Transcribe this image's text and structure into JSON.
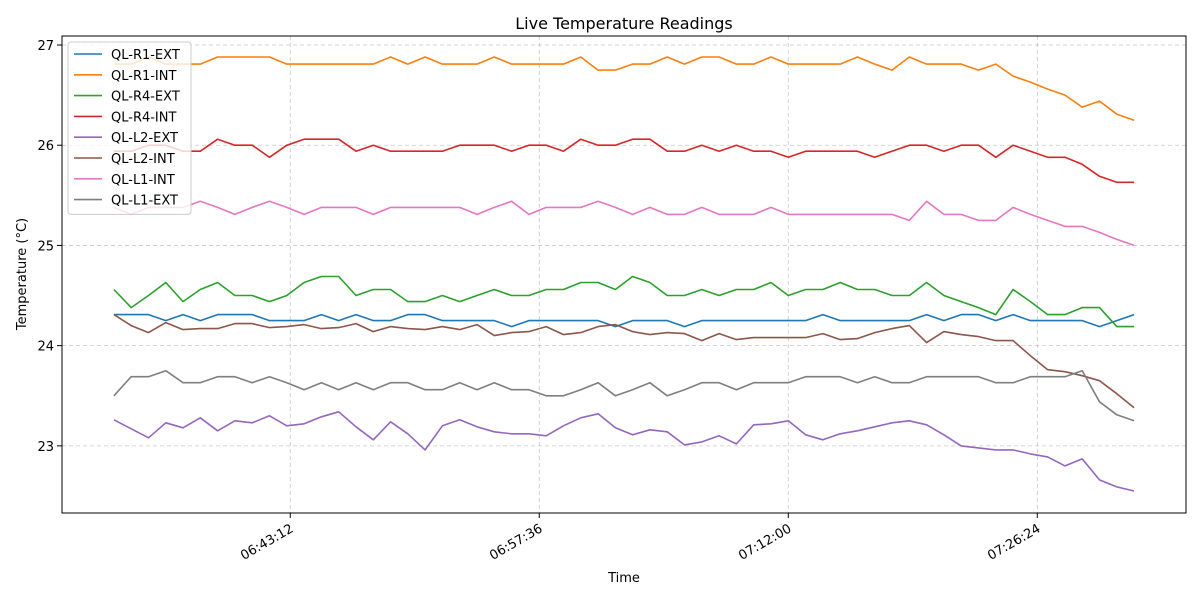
{
  "chart_data": {
    "type": "line",
    "title": "Live Temperature Readings",
    "xlabel": "Time",
    "ylabel": "Temperature (°C)",
    "x_unit": "minutes",
    "x": [
      0,
      2,
      4,
      6,
      8,
      10,
      12,
      14,
      16,
      18,
      20,
      22,
      24,
      26,
      28,
      30,
      32,
      34,
      36,
      38,
      40,
      42,
      44,
      46,
      48,
      50,
      52,
      54,
      56,
      58,
      60,
      62,
      64,
      66,
      68,
      70,
      72,
      74,
      76,
      78,
      80,
      82,
      84,
      86,
      88,
      90,
      92,
      94,
      96,
      98,
      100,
      102,
      104,
      106,
      108,
      110,
      112,
      114,
      116,
      118
    ],
    "xlim": [
      -6,
      124
    ],
    "ylim": [
      22.33,
      27.09
    ],
    "xticks": [
      {
        "value": 20.4,
        "label": "06:43:12"
      },
      {
        "value": 49.2,
        "label": "06:57:36"
      },
      {
        "value": 78.0,
        "label": "07:12:00"
      },
      {
        "value": 106.8,
        "label": "07:26:24"
      }
    ],
    "yticks": [
      23,
      24,
      25,
      26,
      27
    ],
    "grid": true,
    "legend_position": "upper left",
    "series": [
      {
        "name": "QL-R1-EXT",
        "color": "#1f77b4",
        "values": [
          24.31,
          24.31,
          24.31,
          24.25,
          24.31,
          24.25,
          24.31,
          24.31,
          24.31,
          24.25,
          24.25,
          24.25,
          24.31,
          24.25,
          24.31,
          24.25,
          24.25,
          24.31,
          24.31,
          24.25,
          24.25,
          24.25,
          24.25,
          24.19,
          24.25,
          24.25,
          24.25,
          24.25,
          24.25,
          24.19,
          24.25,
          24.25,
          24.25,
          24.19,
          24.25,
          24.25,
          24.25,
          24.25,
          24.25,
          24.25,
          24.25,
          24.31,
          24.25,
          24.25,
          24.25,
          24.25,
          24.25,
          24.31,
          24.25,
          24.31,
          24.31,
          24.25,
          24.31,
          24.25,
          24.25,
          24.25,
          24.25,
          24.19,
          24.25,
          24.31
        ]
      },
      {
        "name": "QL-R1-INT",
        "color": "#ff7f0e",
        "values": [
          26.81,
          26.81,
          26.88,
          26.81,
          26.81,
          26.81,
          26.88,
          26.88,
          26.88,
          26.88,
          26.81,
          26.81,
          26.81,
          26.81,
          26.81,
          26.81,
          26.88,
          26.81,
          26.88,
          26.81,
          26.81,
          26.81,
          26.88,
          26.81,
          26.81,
          26.81,
          26.81,
          26.88,
          26.75,
          26.75,
          26.81,
          26.81,
          26.88,
          26.81,
          26.88,
          26.88,
          26.81,
          26.81,
          26.88,
          26.81,
          26.81,
          26.81,
          26.81,
          26.88,
          26.81,
          26.75,
          26.88,
          26.81,
          26.81,
          26.81,
          26.75,
          26.81,
          26.69,
          26.63,
          26.56,
          26.5,
          26.38,
          26.44,
          26.31,
          26.25
        ]
      },
      {
        "name": "QL-R4-EXT",
        "color": "#2ca02c",
        "values": [
          24.56,
          24.38,
          24.5,
          24.63,
          24.44,
          24.56,
          24.63,
          24.5,
          24.5,
          24.44,
          24.5,
          24.63,
          24.69,
          24.69,
          24.5,
          24.56,
          24.56,
          24.44,
          24.44,
          24.5,
          24.44,
          24.5,
          24.56,
          24.5,
          24.5,
          24.56,
          24.56,
          24.63,
          24.63,
          24.56,
          24.69,
          24.63,
          24.5,
          24.5,
          24.56,
          24.5,
          24.56,
          24.56,
          24.63,
          24.5,
          24.56,
          24.56,
          24.63,
          24.56,
          24.56,
          24.5,
          24.5,
          24.63,
          24.5,
          24.44,
          24.38,
          24.31,
          24.56,
          24.44,
          24.31,
          24.31,
          24.38,
          24.38,
          24.19,
          24.19
        ]
      },
      {
        "name": "QL-R4-INT",
        "color": "#d62728",
        "values": [
          25.94,
          25.94,
          26.0,
          26.0,
          25.94,
          25.94,
          26.06,
          26.0,
          26.0,
          25.88,
          26.0,
          26.06,
          26.06,
          26.06,
          25.94,
          26.0,
          25.94,
          25.94,
          25.94,
          25.94,
          26.0,
          26.0,
          26.0,
          25.94,
          26.0,
          26.0,
          25.94,
          26.06,
          26.0,
          26.0,
          26.06,
          26.06,
          25.94,
          25.94,
          26.0,
          25.94,
          26.0,
          25.94,
          25.94,
          25.88,
          25.94,
          25.94,
          25.94,
          25.94,
          25.88,
          25.94,
          26.0,
          26.0,
          25.94,
          26.0,
          26.0,
          25.88,
          26.0,
          25.94,
          25.88,
          25.88,
          25.81,
          25.69,
          25.63,
          25.63
        ]
      },
      {
        "name": "QL-L2-EXT",
        "color": "#9467bd",
        "values": [
          23.26,
          23.17,
          23.08,
          23.23,
          23.18,
          23.28,
          23.15,
          23.25,
          23.23,
          23.3,
          23.2,
          23.22,
          23.29,
          23.34,
          23.19,
          23.06,
          23.24,
          23.12,
          22.96,
          23.2,
          23.26,
          23.19,
          23.14,
          23.12,
          23.12,
          23.1,
          23.2,
          23.28,
          23.32,
          23.18,
          23.11,
          23.16,
          23.14,
          23.01,
          23.04,
          23.1,
          23.02,
          23.21,
          23.22,
          23.25,
          23.11,
          23.06,
          23.12,
          23.15,
          23.19,
          23.23,
          23.25,
          23.21,
          23.11,
          23.0,
          22.98,
          22.96,
          22.96,
          22.92,
          22.89,
          22.8,
          22.87,
          22.66,
          22.59,
          22.55
        ]
      },
      {
        "name": "QL-L2-INT",
        "color": "#8c564b",
        "values": [
          24.31,
          24.2,
          24.13,
          24.23,
          24.16,
          24.17,
          24.17,
          24.22,
          24.22,
          24.18,
          24.19,
          24.21,
          24.17,
          24.18,
          24.22,
          24.14,
          24.19,
          24.17,
          24.16,
          24.19,
          24.16,
          24.21,
          24.1,
          24.13,
          24.14,
          24.19,
          24.11,
          24.13,
          24.19,
          24.21,
          24.14,
          24.11,
          24.13,
          24.12,
          24.05,
          24.12,
          24.06,
          24.08,
          24.08,
          24.08,
          24.08,
          24.12,
          24.06,
          24.07,
          24.13,
          24.17,
          24.2,
          24.03,
          24.14,
          24.11,
          24.09,
          24.05,
          24.05,
          23.9,
          23.76,
          23.74,
          23.7,
          23.65,
          23.52,
          23.38
        ]
      },
      {
        "name": "QL-L1-INT",
        "color": "#e377c2",
        "values": [
          25.38,
          25.31,
          25.38,
          25.38,
          25.38,
          25.44,
          25.38,
          25.31,
          25.38,
          25.44,
          25.38,
          25.31,
          25.38,
          25.38,
          25.38,
          25.31,
          25.38,
          25.38,
          25.38,
          25.38,
          25.38,
          25.31,
          25.38,
          25.44,
          25.31,
          25.38,
          25.38,
          25.38,
          25.44,
          25.38,
          25.31,
          25.38,
          25.31,
          25.31,
          25.38,
          25.31,
          25.31,
          25.31,
          25.38,
          25.31,
          25.31,
          25.31,
          25.31,
          25.31,
          25.31,
          25.31,
          25.25,
          25.44,
          25.31,
          25.31,
          25.25,
          25.25,
          25.38,
          25.31,
          25.25,
          25.19,
          25.19,
          25.13,
          25.06,
          25.0
        ]
      },
      {
        "name": "QL-L1-EXT",
        "color": "#7f7f7f",
        "values": [
          23.5,
          23.69,
          23.69,
          23.75,
          23.63,
          23.63,
          23.69,
          23.69,
          23.63,
          23.69,
          23.63,
          23.56,
          23.63,
          23.56,
          23.63,
          23.56,
          23.63,
          23.63,
          23.56,
          23.56,
          23.63,
          23.56,
          23.63,
          23.56,
          23.56,
          23.5,
          23.5,
          23.56,
          23.63,
          23.5,
          23.56,
          23.63,
          23.5,
          23.56,
          23.63,
          23.63,
          23.56,
          23.63,
          23.63,
          23.63,
          23.69,
          23.69,
          23.69,
          23.63,
          23.69,
          23.63,
          23.63,
          23.69,
          23.69,
          23.69,
          23.69,
          23.63,
          23.63,
          23.69,
          23.69,
          23.69,
          23.75,
          23.44,
          23.31,
          23.25
        ]
      }
    ]
  }
}
